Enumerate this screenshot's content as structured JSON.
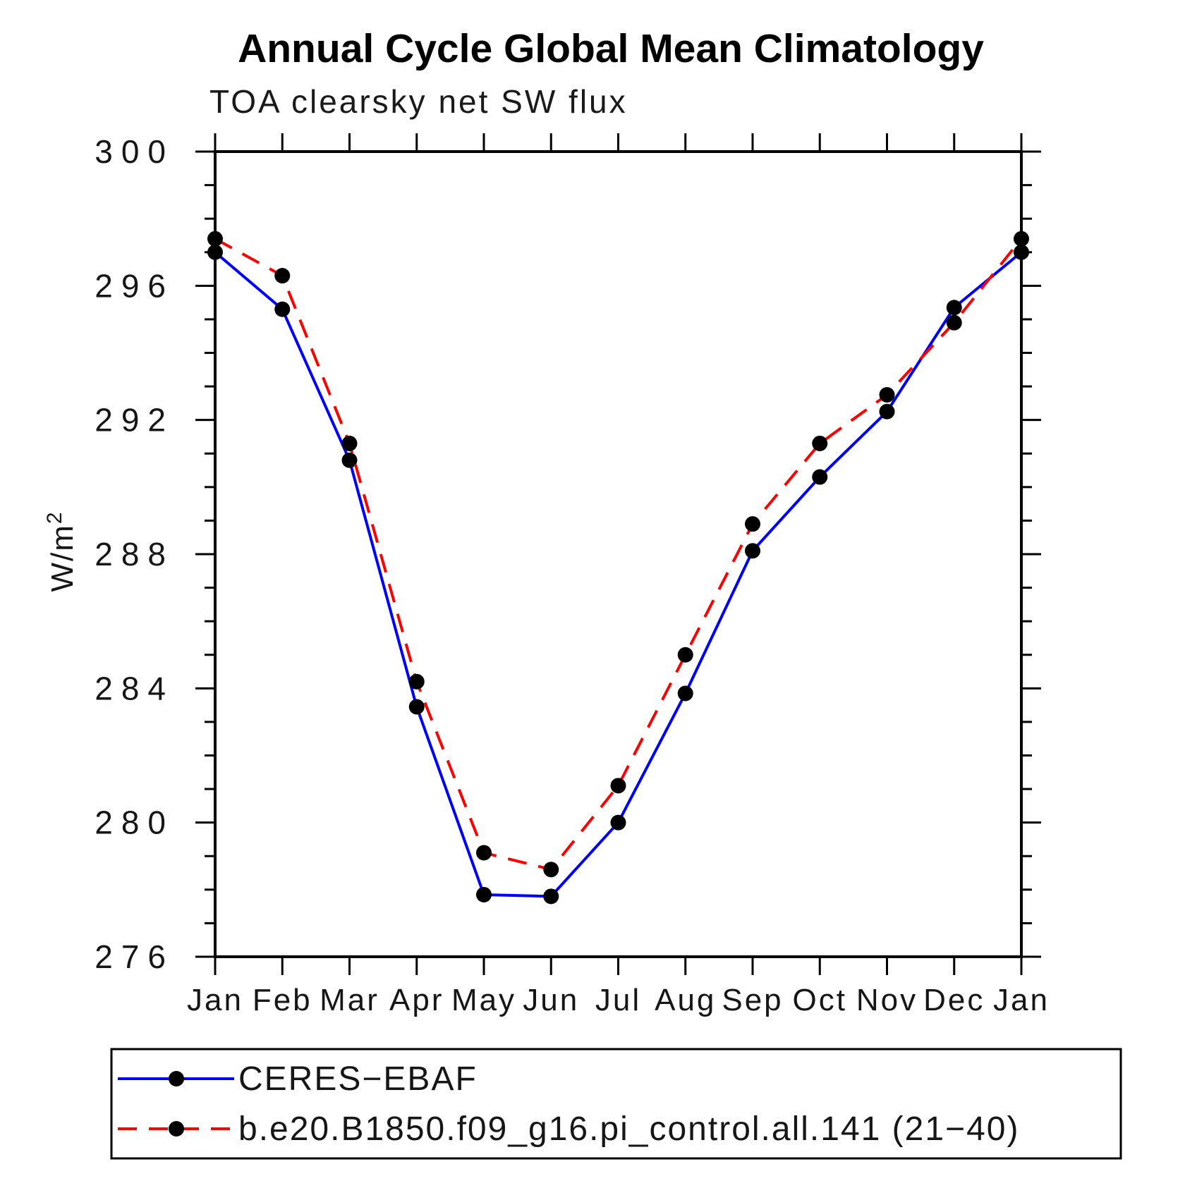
{
  "page": {
    "title": "Annual Cycle Global Mean Climatology",
    "subtitle": "TOA clearsky net SW flux"
  },
  "chart_data": {
    "type": "line",
    "title": "Annual Cycle Global Mean Climatology",
    "subtitle": "TOA clearsky net SW flux",
    "ylabel": "W/m",
    "ylabel_sup": "2",
    "xlabel": "",
    "categories": [
      "Jan",
      "Feb",
      "Mar",
      "Apr",
      "May",
      "Jun",
      "Jul",
      "Aug",
      "Sep",
      "Oct",
      "Nov",
      "Dec",
      "Jan"
    ],
    "ylim": [
      276,
      300
    ],
    "ytick_major": [
      276,
      280,
      284,
      288,
      292,
      296,
      300
    ],
    "ytick_minor_step": 1,
    "grid": false,
    "legend_position": "bottom",
    "series": [
      {
        "name": "CERES−EBAF",
        "color": "#0000ff",
        "style": "solid",
        "marker": "circle",
        "marker_color": "#000000",
        "values": [
          297.0,
          295.3,
          290.8,
          283.45,
          277.85,
          277.8,
          280.0,
          283.85,
          288.1,
          290.3,
          292.25,
          295.35,
          297.0
        ]
      },
      {
        "name": "b.e20.B1850.f09_g16.pi_control.all.141 (21−40)",
        "color": "#ff0000",
        "style": "dashed",
        "marker": "circle",
        "marker_color": "#000000",
        "values": [
          297.4,
          296.3,
          291.3,
          284.2,
          279.1,
          278.6,
          281.1,
          285.0,
          288.9,
          291.3,
          292.75,
          294.9,
          297.4
        ]
      }
    ]
  }
}
